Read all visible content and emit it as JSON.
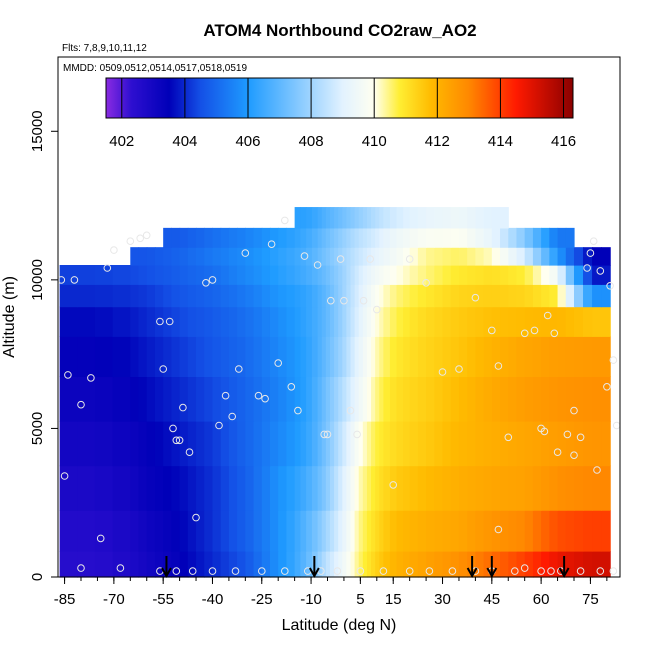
{
  "chart_data": {
    "type": "heatmap",
    "title": "ATOM4 Northbound CO2raw_AO2",
    "flights_label": "Flts: 7,8,9,10,11,12",
    "dates_label": "MMDD: 0509,0512,0514,0517,0518,0519",
    "xlabel": "Latitude (deg N)",
    "ylabel": "Altitude (m)",
    "xlim": [
      -87,
      84
    ],
    "ylim": [
      0,
      17500
    ],
    "x_ticks": [
      -85,
      -70,
      -55,
      -40,
      -25,
      -10,
      5,
      15,
      30,
      45,
      60,
      75
    ],
    "y_ticks": [
      0,
      5000,
      10000,
      15000
    ],
    "colorbar": {
      "min": 401.5,
      "max": 416.3,
      "ticks": [
        402,
        404,
        406,
        408,
        410,
        412,
        414,
        416
      ],
      "stops": [
        {
          "v": 401.5,
          "c": "#8a2be2"
        },
        {
          "v": 402.3,
          "c": "#2e0fd0"
        },
        {
          "v": 403.5,
          "c": "#0000b8"
        },
        {
          "v": 404.5,
          "c": "#1450e6"
        },
        {
          "v": 406.0,
          "c": "#1e9bff"
        },
        {
          "v": 407.5,
          "c": "#7fc6ff"
        },
        {
          "v": 409.0,
          "c": "#e2f2ff"
        },
        {
          "v": 410.0,
          "c": "#fffff0"
        },
        {
          "v": 410.8,
          "c": "#ffee33"
        },
        {
          "v": 411.8,
          "c": "#ffbb00"
        },
        {
          "v": 413.0,
          "c": "#ff8800"
        },
        {
          "v": 414.5,
          "c": "#ff1a00"
        },
        {
          "v": 416.3,
          "c": "#8b0000"
        }
      ]
    },
    "flight_markers_lat": [
      -54,
      -9,
      39,
      45,
      67
    ],
    "curtain": {
      "lat_edges": [
        -86.5,
        -65,
        -55,
        -45,
        -35,
        -25,
        -15,
        -8,
        -3,
        2,
        7,
        12,
        20,
        30,
        40,
        50,
        60,
        70,
        81
      ],
      "alt_centers": [
        250,
        1500,
        3000,
        4500,
        6000,
        7500,
        8700,
        9500,
        10200,
        10800,
        11400,
        12100
      ],
      "values": [
        [
          402.5,
          403.0,
          403.4,
          404.0,
          404.6,
          405.8,
          407.0,
          408.4,
          409.4,
          410.5,
          411.3,
          412.0,
          412.4,
          412.8,
          413.4,
          414.0,
          414.8,
          415.2
        ],
        [
          402.6,
          403.1,
          403.5,
          404.1,
          404.8,
          405.8,
          406.9,
          408.0,
          409.1,
          410.4,
          411.1,
          411.8,
          412.1,
          412.3,
          412.7,
          413.0,
          413.8,
          414.0
        ],
        [
          402.8,
          403.3,
          403.6,
          404.1,
          404.8,
          405.8,
          406.6,
          407.6,
          408.9,
          410.2,
          410.9,
          411.5,
          411.8,
          412.1,
          412.3,
          412.4,
          412.8,
          413.0
        ],
        [
          403.0,
          403.4,
          403.8,
          404.2,
          404.9,
          405.6,
          406.3,
          407.4,
          408.6,
          409.9,
          410.7,
          411.2,
          411.5,
          411.9,
          412.1,
          412.3,
          412.5,
          412.7
        ],
        [
          403.2,
          403.6,
          404.0,
          404.4,
          404.9,
          405.5,
          406.2,
          407.3,
          408.3,
          409.4,
          410.4,
          411.1,
          411.4,
          411.8,
          412.2,
          412.5,
          412.7,
          412.8
        ],
        [
          403.4,
          403.8,
          404.2,
          404.6,
          405.0,
          405.6,
          406.2,
          407.1,
          408.0,
          409.2,
          410.2,
          410.9,
          411.3,
          411.6,
          412.0,
          412.3,
          412.5,
          412.6
        ],
        [
          403.6,
          404.0,
          404.4,
          404.7,
          405.1,
          405.7,
          406.3,
          407.0,
          407.9,
          409.0,
          410.0,
          410.7,
          411.2,
          411.5,
          411.7,
          411.8,
          411.9,
          411.6
        ],
        [
          404.0,
          404.2,
          404.6,
          404.9,
          405.3,
          405.9,
          406.3,
          407.0,
          407.9,
          408.9,
          409.8,
          410.5,
          410.9,
          411.3,
          411.4,
          411.3,
          410.8,
          405.8
        ],
        [
          404.3,
          404.5,
          404.8,
          405.1,
          405.6,
          406.1,
          406.6,
          407.2,
          407.9,
          408.8,
          409.5,
          410.0,
          410.5,
          410.9,
          411.1,
          410.8,
          409.5,
          403.8
        ],
        [
          null,
          404.6,
          404.9,
          405.3,
          405.7,
          406.2,
          406.7,
          407.4,
          408.0,
          408.6,
          409.1,
          409.6,
          410.4,
          410.6,
          410.2,
          408.8,
          406.0,
          403.5
        ],
        [
          null,
          null,
          404.7,
          405.1,
          405.5,
          406.0,
          406.5,
          407.2,
          407.8,
          408.4,
          408.8,
          409.4,
          409.8,
          409.9,
          409.2,
          407.6,
          405.3,
          null
        ],
        [
          null,
          null,
          null,
          null,
          null,
          null,
          406.2,
          406.8,
          407.3,
          407.8,
          408.3,
          408.8,
          409.2,
          409.4,
          409.0,
          null,
          null,
          null
        ]
      ]
    },
    "sample_points": [
      [
        -85,
        3400
      ],
      [
        -84,
        6800
      ],
      [
        -86,
        10000
      ],
      [
        -82,
        10000
      ],
      [
        -80,
        5800
      ],
      [
        -77,
        6700
      ],
      [
        -74,
        1300
      ],
      [
        -72,
        10400
      ],
      [
        -70,
        11000
      ],
      [
        -65,
        11300
      ],
      [
        -62,
        11400
      ],
      [
        -60,
        11500
      ],
      [
        -56,
        8600
      ],
      [
        -55,
        7000
      ],
      [
        -53,
        8600
      ],
      [
        -52,
        5000
      ],
      [
        -51,
        4600
      ],
      [
        -50,
        4600
      ],
      [
        -49,
        5700
      ],
      [
        -47,
        4200
      ],
      [
        -45,
        2000
      ],
      [
        -42,
        9900
      ],
      [
        -40,
        10000
      ],
      [
        -38,
        5100
      ],
      [
        -36,
        6100
      ],
      [
        -34,
        5400
      ],
      [
        -32,
        7000
      ],
      [
        -30,
        10900
      ],
      [
        -26,
        6100
      ],
      [
        -24,
        6000
      ],
      [
        -22,
        11200
      ],
      [
        -20,
        7200
      ],
      [
        -18,
        12000
      ],
      [
        -16,
        6400
      ],
      [
        -14,
        5600
      ],
      [
        -12,
        10800
      ],
      [
        -8,
        10500
      ],
      [
        -6,
        4800
      ],
      [
        -5,
        4800
      ],
      [
        -4,
        9300
      ],
      [
        -1,
        10700
      ],
      [
        0,
        9300
      ],
      [
        2,
        5600
      ],
      [
        4,
        4800
      ],
      [
        6,
        9300
      ],
      [
        8,
        10700
      ],
      [
        10,
        9000
      ],
      [
        15,
        3100
      ],
      [
        20,
        10700
      ],
      [
        25,
        9900
      ],
      [
        30,
        6900
      ],
      [
        35,
        7000
      ],
      [
        40,
        9400
      ],
      [
        45,
        8300
      ],
      [
        47,
        7100
      ],
      [
        50,
        4700
      ],
      [
        55,
        8200
      ],
      [
        58,
        8300
      ],
      [
        60,
        5000
      ],
      [
        61,
        4900
      ],
      [
        62,
        8800
      ],
      [
        64,
        8200
      ],
      [
        65,
        4200
      ],
      [
        68,
        4800
      ],
      [
        70,
        5600
      ],
      [
        72,
        4700
      ],
      [
        74,
        10400
      ],
      [
        75,
        10900
      ],
      [
        76,
        11300
      ],
      [
        78,
        10300
      ],
      [
        80,
        6400
      ],
      [
        82,
        7300
      ],
      [
        83,
        5100
      ],
      [
        81,
        9800
      ],
      [
        77,
        3600
      ],
      [
        70,
        4100
      ],
      [
        -80,
        300
      ],
      [
        -68,
        300
      ],
      [
        -56,
        200
      ],
      [
        -51,
        200
      ],
      [
        -46,
        200
      ],
      [
        -40,
        200
      ],
      [
        -33,
        200
      ],
      [
        -25,
        200
      ],
      [
        -18,
        200
      ],
      [
        -11,
        200
      ],
      [
        -7,
        200
      ],
      [
        -2,
        200
      ],
      [
        5,
        200
      ],
      [
        12,
        200
      ],
      [
        20,
        200
      ],
      [
        26,
        200
      ],
      [
        33,
        200
      ],
      [
        40,
        200
      ],
      [
        45,
        200
      ],
      [
        52,
        200
      ],
      [
        60,
        200
      ],
      [
        63,
        200
      ],
      [
        66,
        200
      ],
      [
        72,
        200
      ],
      [
        78,
        200
      ],
      [
        82,
        200
      ],
      [
        55,
        300
      ],
      [
        47,
        1600
      ]
    ]
  }
}
